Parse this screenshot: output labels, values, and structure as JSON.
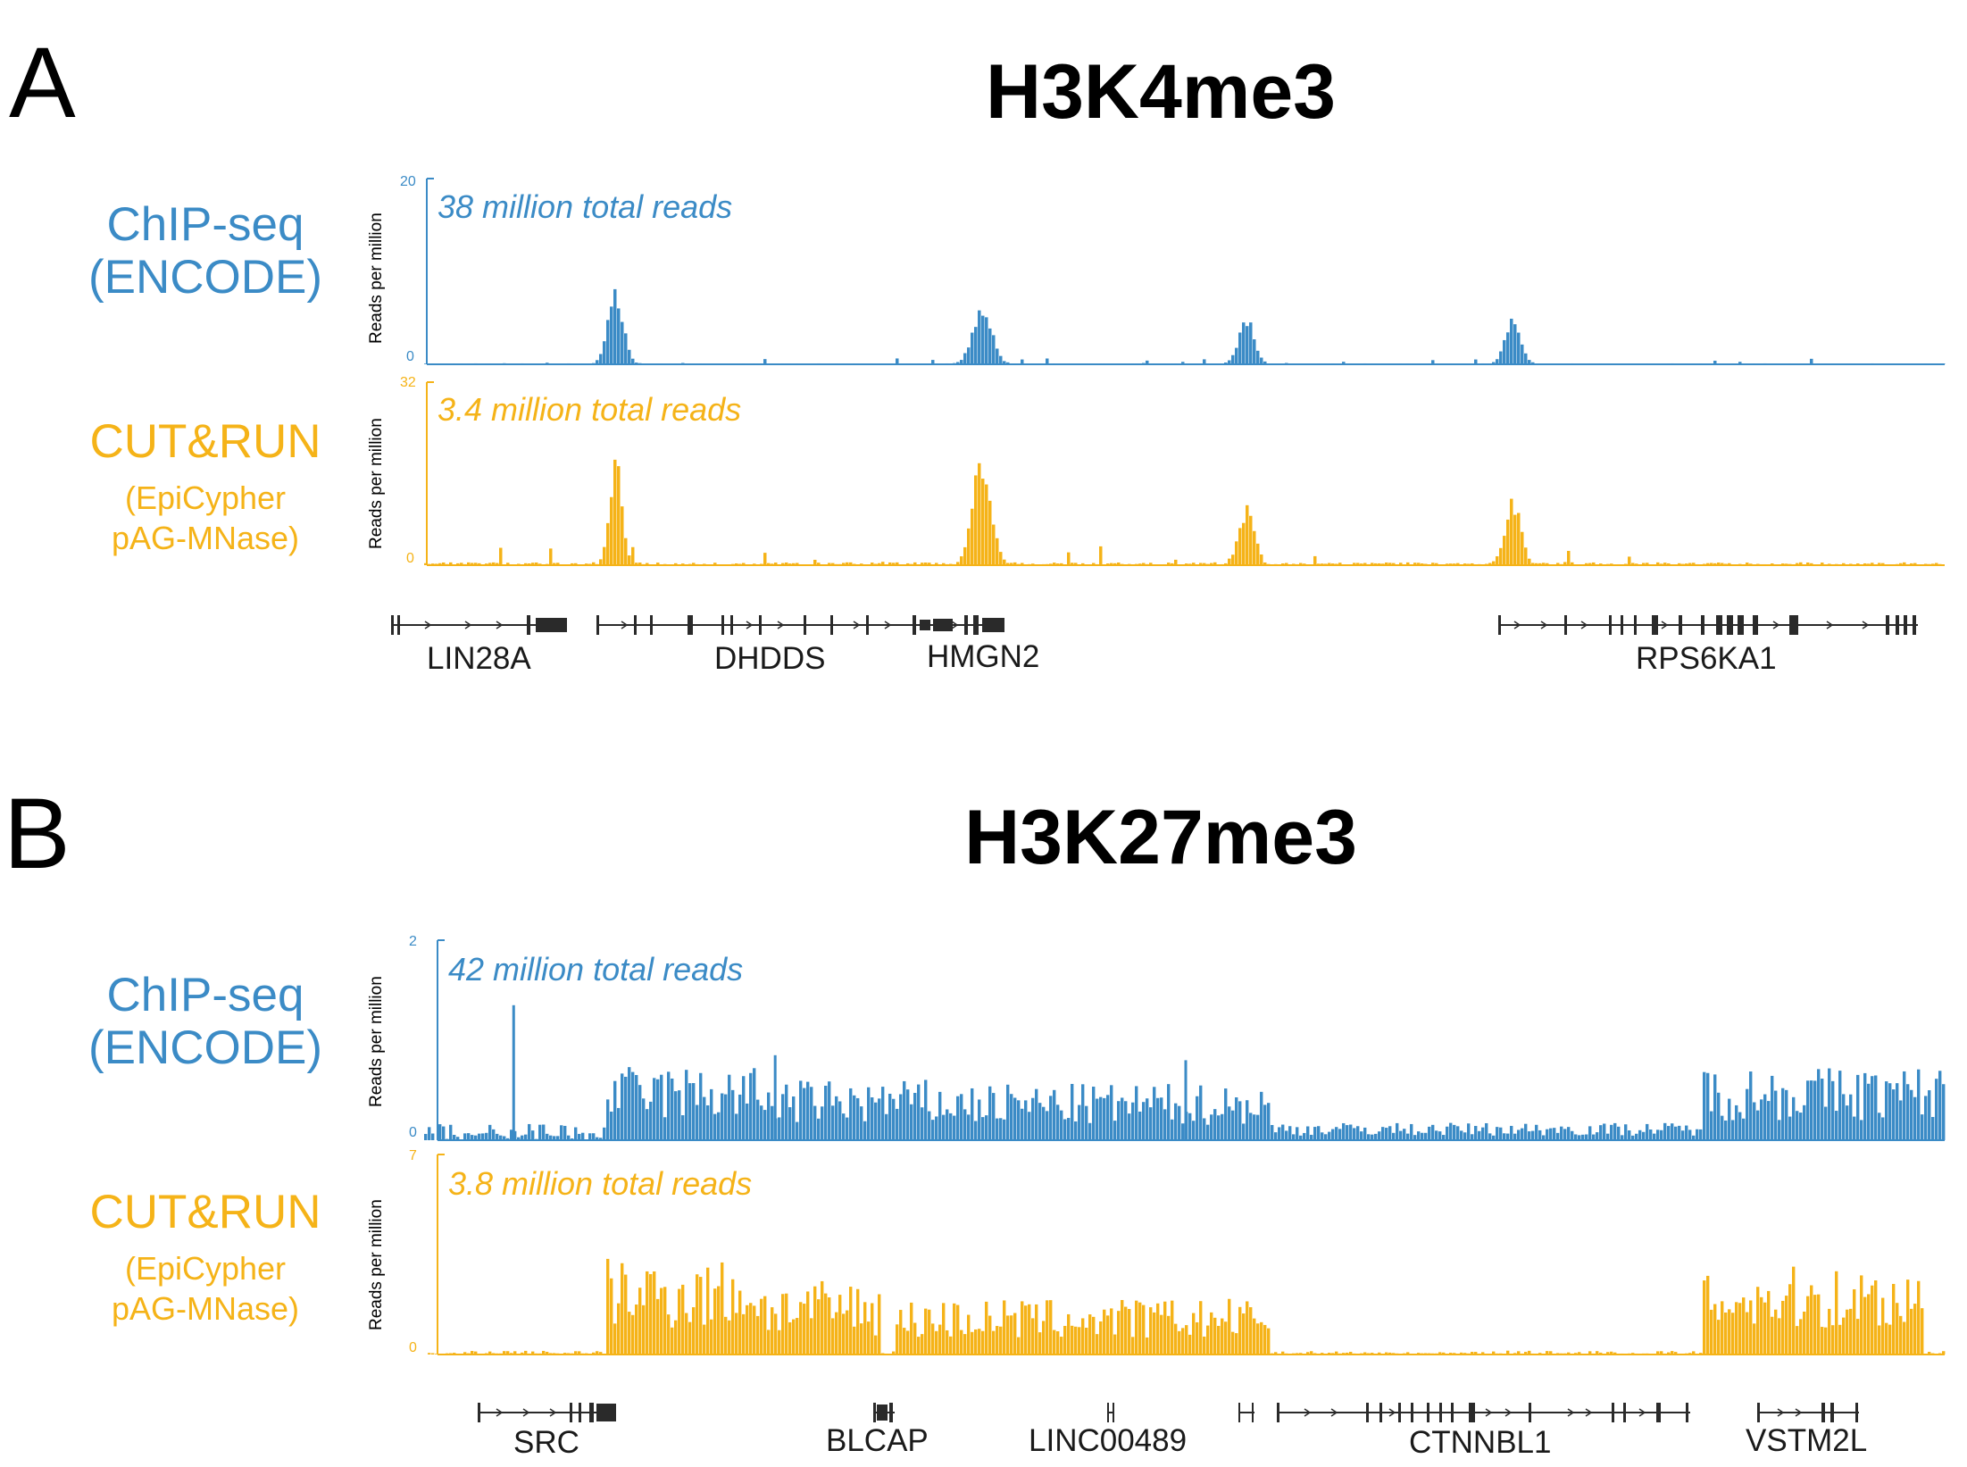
{
  "colors": {
    "chip": "#3b8bc6",
    "cutrun": "#f5b318",
    "gene": "#2a2a2a",
    "text": "#000000"
  },
  "panels": [
    {
      "letter": "A",
      "title": "H3K4me3",
      "tracks": [
        {
          "id": "chip",
          "name_line1": "ChIP-seq",
          "name_line2": "(ENCODE)",
          "reads": "38 million total reads",
          "ylabel": "Reads per million",
          "ymax_label": "20",
          "ymin_label": "0"
        },
        {
          "id": "cutrun",
          "name_line1": "CUT&RUN",
          "sub_line1": "(EpiCypher",
          "sub_line2": "pAG-MNase)",
          "reads": "3.4 million total reads",
          "ylabel": "Reads per million",
          "ymax_label": "32",
          "ymin_label": "0"
        }
      ],
      "genes": [
        "LIN28A",
        "DHDDS",
        "HMGN2",
        "RPS6KA1"
      ]
    },
    {
      "letter": "B",
      "title": "H3K27me3",
      "tracks": [
        {
          "id": "chip",
          "name_line1": "ChIP-seq",
          "name_line2": "(ENCODE)",
          "reads": "42 million total reads",
          "ylabel": "Reads per million",
          "ymax_label": "2",
          "ymin_label": "0"
        },
        {
          "id": "cutrun",
          "name_line1": "CUT&RUN",
          "sub_line1": "(EpiCypher",
          "sub_line2": "pAG-MNase)",
          "reads": "3.8 million total reads",
          "ylabel": "Reads per million",
          "ymax_label": "7",
          "ymin_label": "0"
        }
      ],
      "genes": [
        "SRC",
        "BLCAP",
        "LINC00489",
        "CTNNBL1",
        "VSTM2L"
      ]
    }
  ],
  "chart_data": [
    {
      "type": "bar",
      "title": "H3K4me3",
      "ylabel": "Reads per million",
      "x_range": [
        0,
        1
      ],
      "series": [
        {
          "name": "ChIP-seq (ENCODE)",
          "ylim": [
            0,
            20
          ],
          "baseline": 0.1,
          "peaks": [
            {
              "x": 0.125,
              "height": 7.2,
              "width": 0.005
            },
            {
              "x": 0.366,
              "height": 6.0,
              "width": 0.006
            },
            {
              "x": 0.54,
              "height": 4.5,
              "width": 0.005
            },
            {
              "x": 0.715,
              "height": 4.3,
              "width": 0.005
            }
          ]
        },
        {
          "name": "CUT&RUN (EpiCypher pAG-MNase)",
          "ylim": [
            0,
            32
          ],
          "baseline": 0.5,
          "peaks": [
            {
              "x": 0.125,
              "height": 16.5,
              "width": 0.004
            },
            {
              "x": 0.366,
              "height": 17.5,
              "width": 0.006
            },
            {
              "x": 0.54,
              "height": 8.8,
              "width": 0.005
            },
            {
              "x": 0.715,
              "height": 10.5,
              "width": 0.005
            }
          ]
        }
      ]
    },
    {
      "type": "bar",
      "title": "H3K27me3",
      "ylabel": "Reads per million",
      "x_range": [
        0,
        1
      ],
      "series": [
        {
          "name": "ChIP-seq (ENCODE)",
          "ylim": [
            0,
            2
          ],
          "baseline": 0.12,
          "domains": [
            {
              "start": 0.118,
              "end": 0.218,
              "level": 0.55
            },
            {
              "start": 0.218,
              "end": 0.33,
              "level": 0.45
            },
            {
              "start": 0.31,
              "end": 0.555,
              "level": 0.42
            },
            {
              "start": 0.555,
              "end": 0.84,
              "level": 0.13
            },
            {
              "start": 0.84,
              "end": 1.0,
              "level": 0.55
            }
          ],
          "spikes": [
            {
              "x": 0.058,
              "value": 1.35
            },
            {
              "x": 0.23,
              "value": 0.85
            },
            {
              "x": 0.5,
              "value": 0.8
            }
          ]
        },
        {
          "name": "CUT&RUN (EpiCypher pAG-MNase)",
          "ylim": [
            0,
            7
          ],
          "baseline": 0.1,
          "domains": [
            {
              "start": 0.118,
              "end": 0.218,
              "level": 2.5
            },
            {
              "start": 0.218,
              "end": 0.3,
              "level": 1.9
            },
            {
              "start": 0.31,
              "end": 0.555,
              "level": 1.45
            },
            {
              "start": 0.84,
              "end": 0.985,
              "level": 2.3
            }
          ]
        }
      ]
    }
  ]
}
